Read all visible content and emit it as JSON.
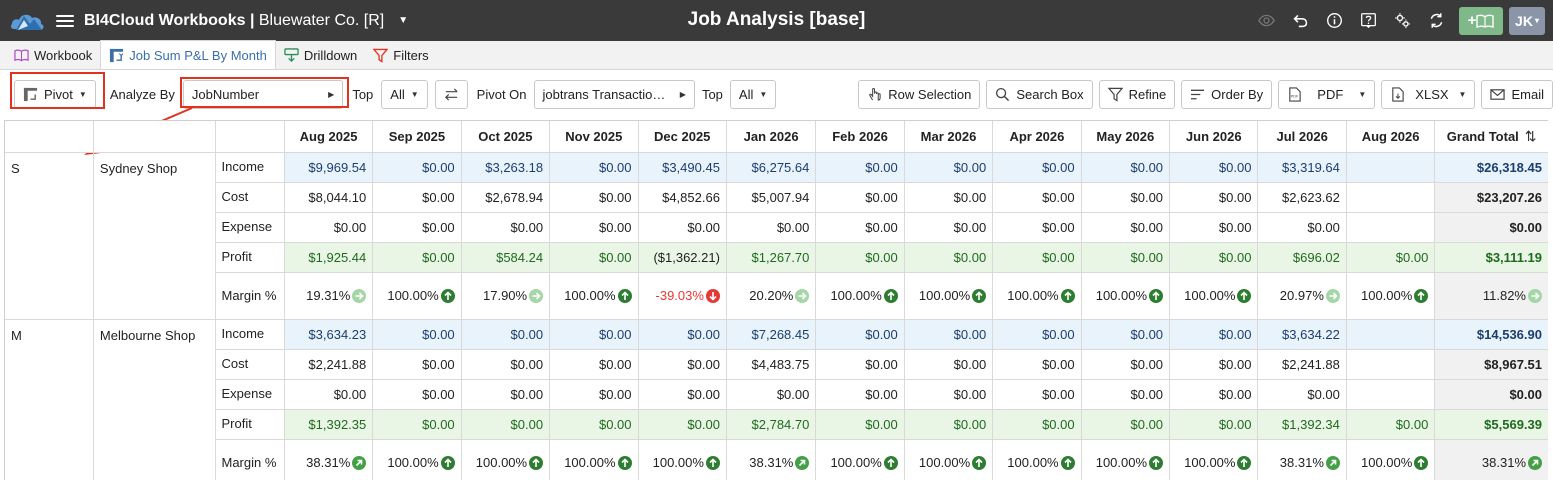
{
  "topbar": {
    "app_name": "BI4Cloud Workbooks | ",
    "company": "Bluewater Co. [R]",
    "page_title": "Job Analysis [base]",
    "add_icon_text": "+",
    "user_initials": "JK"
  },
  "tabs": [
    {
      "label": "Workbook"
    },
    {
      "label": "Job Sum P&L By Month"
    },
    {
      "label": "Drilldown"
    },
    {
      "label": "Filters"
    }
  ],
  "toolbar": {
    "pivot_label": "Pivot",
    "analyze_by_label": "Analyze By",
    "analyze_by_value": "JobNumber",
    "top_label_1": "Top",
    "top_value_1": "All",
    "pivot_on_label": "Pivot On",
    "pivot_on_value": "jobtrans Transactio…",
    "top_label_2": "Top",
    "top_value_2": "All",
    "row_selection": "Row Selection",
    "search_box": "Search Box",
    "refine": "Refine",
    "order_by": "Order By",
    "pdf": "PDF",
    "xlsx": "XLSX",
    "email": "Email"
  },
  "grid": {
    "columns": [
      "Aug 2025",
      "Sep 2025",
      "Oct 2025",
      "Nov 2025",
      "Dec 2025",
      "Jan 2026",
      "Feb 2026",
      "Mar 2026",
      "Apr 2026",
      "May 2026",
      "Jun 2026",
      "Jul 2026",
      "Aug 2026"
    ],
    "grand_total_label": "Grand Total",
    "groups": [
      {
        "code": "S",
        "name": "Sydney Shop",
        "rows": [
          {
            "label": "Income",
            "values": [
              "$9,969.54",
              "$0.00",
              "$3,263.18",
              "$0.00",
              "$3,490.45",
              "$6,275.64",
              "$0.00",
              "$0.00",
              "$0.00",
              "$0.00",
              "$0.00",
              "$3,319.64",
              ""
            ],
            "total": "$26,318.45"
          },
          {
            "label": "Cost",
            "values": [
              "$8,044.10",
              "$0.00",
              "$2,678.94",
              "$0.00",
              "$4,852.66",
              "$5,007.94",
              "$0.00",
              "$0.00",
              "$0.00",
              "$0.00",
              "$0.00",
              "$2,623.62",
              ""
            ],
            "total": "$23,207.26"
          },
          {
            "label": "Expense",
            "values": [
              "$0.00",
              "$0.00",
              "$0.00",
              "$0.00",
              "$0.00",
              "$0.00",
              "$0.00",
              "$0.00",
              "$0.00",
              "$0.00",
              "$0.00",
              "$0.00",
              ""
            ],
            "total": "$0.00"
          },
          {
            "label": "Profit",
            "values": [
              "$1,925.44",
              "$0.00",
              "$584.24",
              "$0.00",
              "($1,362.21)",
              "$1,267.70",
              "$0.00",
              "$0.00",
              "$0.00",
              "$0.00",
              "$0.00",
              "$696.02",
              "$0.00"
            ],
            "total": "$3,111.19"
          },
          {
            "label": "Margin %",
            "values": [
              "19.31%",
              "100.00%",
              "17.90%",
              "100.00%",
              "-39.03%",
              "20.20%",
              "100.00%",
              "100.00%",
              "100.00%",
              "100.00%",
              "100.00%",
              "20.97%",
              "100.00%"
            ],
            "indicators": [
              "flat",
              "up",
              "flat",
              "up",
              "down",
              "flat",
              "up",
              "up",
              "up",
              "up",
              "up",
              "flat",
              "up"
            ],
            "total": "11.82%",
            "total_indicator": "flat"
          }
        ]
      },
      {
        "code": "M",
        "name": "Melbourne Shop",
        "rows": [
          {
            "label": "Income",
            "values": [
              "$3,634.23",
              "$0.00",
              "$0.00",
              "$0.00",
              "$0.00",
              "$7,268.45",
              "$0.00",
              "$0.00",
              "$0.00",
              "$0.00",
              "$0.00",
              "$3,634.22",
              ""
            ],
            "total": "$14,536.90"
          },
          {
            "label": "Cost",
            "values": [
              "$2,241.88",
              "$0.00",
              "$0.00",
              "$0.00",
              "$0.00",
              "$4,483.75",
              "$0.00",
              "$0.00",
              "$0.00",
              "$0.00",
              "$0.00",
              "$2,241.88",
              ""
            ],
            "total": "$8,967.51"
          },
          {
            "label": "Expense",
            "values": [
              "$0.00",
              "$0.00",
              "$0.00",
              "$0.00",
              "$0.00",
              "$0.00",
              "$0.00",
              "$0.00",
              "$0.00",
              "$0.00",
              "$0.00",
              "$0.00",
              ""
            ],
            "total": "$0.00"
          },
          {
            "label": "Profit",
            "values": [
              "$1,392.35",
              "$0.00",
              "$0.00",
              "$0.00",
              "$0.00",
              "$2,784.70",
              "$0.00",
              "$0.00",
              "$0.00",
              "$0.00",
              "$0.00",
              "$1,392.34",
              "$0.00"
            ],
            "total": "$5,569.39"
          },
          {
            "label": "Margin %",
            "values": [
              "38.31%",
              "100.00%",
              "100.00%",
              "100.00%",
              "100.00%",
              "38.31%",
              "100.00%",
              "100.00%",
              "100.00%",
              "100.00%",
              "100.00%",
              "38.31%",
              "100.00%"
            ],
            "indicators": [
              "diag",
              "up",
              "up",
              "up",
              "up",
              "diag",
              "up",
              "up",
              "up",
              "up",
              "up",
              "diag",
              "up"
            ],
            "total": "38.31%",
            "total_indicator": "diag"
          }
        ]
      }
    ]
  },
  "colors": {
    "topbar_bg": "#3a3a3a",
    "accent_blue": "#3b6fa8",
    "highlight_red": "#e0321e",
    "income_bg": "#e9f3fb",
    "profit_bg": "#e9f6e5",
    "positive_green": "#2e7d32",
    "negative_red": "#e53935"
  }
}
